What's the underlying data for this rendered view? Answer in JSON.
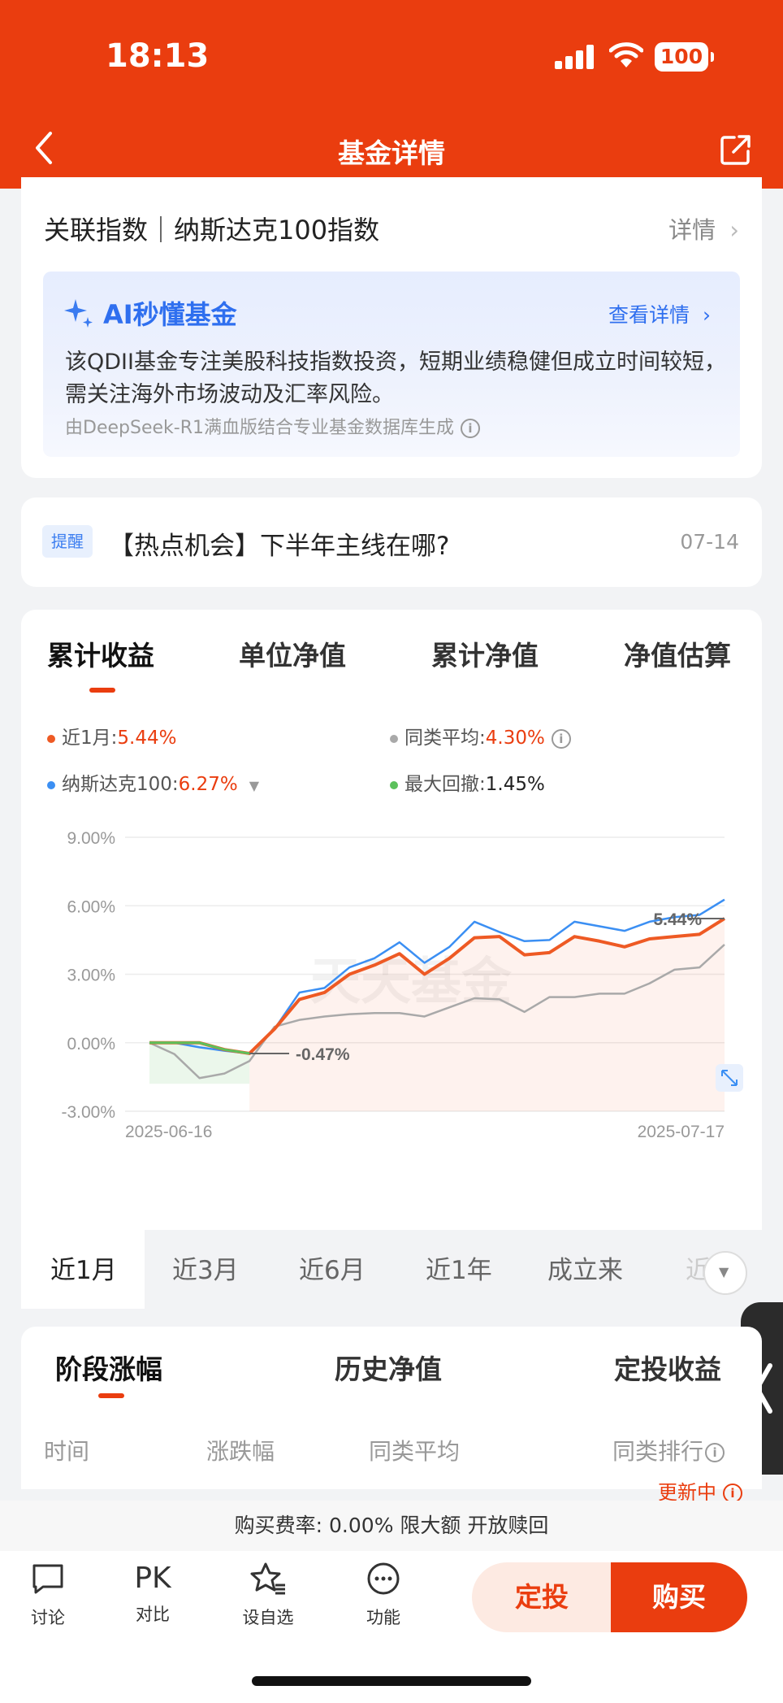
{
  "status_bar": {
    "time": "18:13",
    "battery": "100"
  },
  "nav": {
    "title": "基金详情"
  },
  "related_index": {
    "label": "关联指数｜纳斯达克100指数",
    "detail": "详情"
  },
  "ai": {
    "title": "AI秒懂基金",
    "more": "查看详情",
    "text": "该QDII基金专注美股科技指数投资，短期业绩稳健但成立时间较短，需关注海外市场波动及汇率风险。",
    "source": "由DeepSeek-R1满血版结合专业基金数据库生成"
  },
  "tip": {
    "badge": "提醒",
    "text": "【热点机会】下半年主线在哪?",
    "date": "07-14"
  },
  "tabs": [
    "累计收益",
    "单位净值",
    "累计净值",
    "净值估算"
  ],
  "legend": {
    "fund_label": "近1月:",
    "fund_value": "5.44%",
    "peer_label": "同类平均:",
    "peer_value": "4.30%",
    "index_label": "纳斯达克100:",
    "index_value": "6.27%",
    "drawdown_label": "最大回撤:",
    "drawdown_value": "1.45%"
  },
  "colors": {
    "fund": "#ee5a24",
    "peer": "#a9a9a9",
    "index": "#3b8ff3",
    "drawdown": "#5cc15c",
    "brand": "#ea3d0f"
  },
  "chart_data": {
    "type": "line",
    "x_start": "2025-06-16",
    "x_end": "2025-07-17",
    "ylim": [
      -3.0,
      9.0
    ],
    "yticks": [
      "9.00%",
      "6.00%",
      "3.00%",
      "0.00%",
      "-3.00%"
    ],
    "watermark": "天天基金",
    "annotations": {
      "max": "5.44%",
      "min": "-0.47%"
    },
    "series": [
      {
        "name": "近1月",
        "values": [
          0.0,
          0.0,
          0.0,
          -0.3,
          -0.47,
          0.6,
          1.9,
          2.2,
          3.0,
          3.4,
          3.9,
          3.0,
          3.7,
          4.6,
          4.65,
          3.85,
          3.95,
          4.65,
          4.45,
          4.2,
          4.55,
          4.65,
          4.75,
          5.44
        ]
      },
      {
        "name": "纳斯达克100",
        "values": [
          0.0,
          0.0,
          -0.2,
          -0.35,
          -0.47,
          0.6,
          2.2,
          2.4,
          3.3,
          3.7,
          4.4,
          3.5,
          4.2,
          5.3,
          4.85,
          4.45,
          4.5,
          5.3,
          5.1,
          4.9,
          5.3,
          5.5,
          5.6,
          6.27
        ]
      },
      {
        "name": "同类平均",
        "values": [
          0.0,
          -0.5,
          -1.55,
          -1.35,
          -0.8,
          0.7,
          1.0,
          1.15,
          1.25,
          1.3,
          1.3,
          1.15,
          1.55,
          1.95,
          1.9,
          1.35,
          2.0,
          2.0,
          2.15,
          2.15,
          2.6,
          3.2,
          3.3,
          4.3
        ]
      }
    ]
  },
  "ranges": [
    "近1月",
    "近3月",
    "近6月",
    "近1年",
    "成立来",
    "近"
  ],
  "section_tabs": [
    "阶段涨幅",
    "历史净值",
    "定投收益"
  ],
  "columns": [
    "时间",
    "涨跌幅",
    "同类平均",
    "同类排行"
  ],
  "updating": "更新中",
  "fee": "购买费率: 0.00% 限大额 开放赎回",
  "bottom": {
    "discuss": "讨论",
    "pk": "PK",
    "compare": "对比",
    "watch": "设自选",
    "func": "功能",
    "sip": "定投",
    "buy": "购买"
  }
}
